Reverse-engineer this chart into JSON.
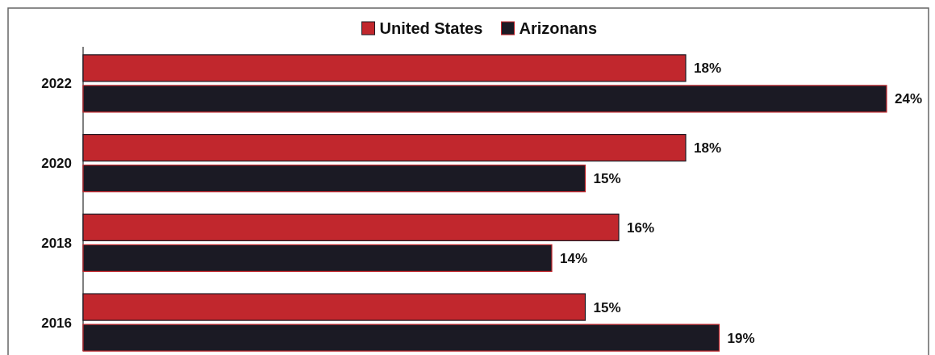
{
  "chart_data": {
    "type": "bar",
    "orientation": "horizontal",
    "categories": [
      "2022",
      "2020",
      "2018",
      "2016"
    ],
    "series": [
      {
        "name": "United States",
        "color": "#c1272d",
        "values": [
          18,
          18,
          16,
          15
        ],
        "value_labels": [
          "18%",
          "18%",
          "16%",
          "15%"
        ]
      },
      {
        "name": "Arizonans",
        "color": "#1b1a24",
        "values": [
          24,
          15,
          14,
          19
        ],
        "value_labels": [
          "24%",
          "15%",
          "14%",
          "19%"
        ]
      }
    ],
    "legend": "top"
  }
}
